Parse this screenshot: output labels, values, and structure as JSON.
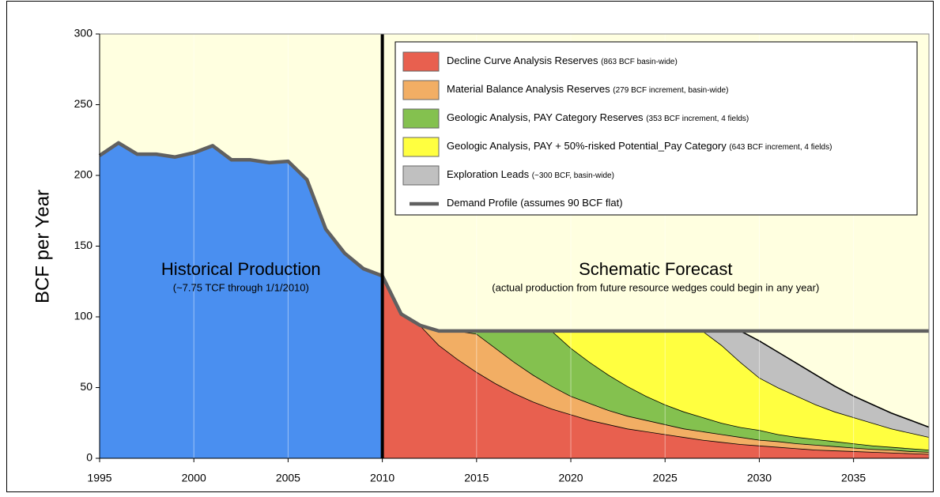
{
  "chart_data": {
    "type": "area",
    "ylabel": "BCF per Year",
    "xlim": [
      1995,
      2039
    ],
    "ylim": [
      0,
      300
    ],
    "xticks": [
      1995,
      2000,
      2005,
      2010,
      2015,
      2020,
      2025,
      2030,
      2035
    ],
    "yticks": [
      0,
      50,
      100,
      150,
      200,
      250,
      300
    ],
    "grid": "x",
    "background": "#ffffe0",
    "history": {
      "name": "Historical Production",
      "note": "(~7.75 TCF through 1/1/2010)",
      "color": "#4a8ff0",
      "outline": "#606060",
      "x": [
        1995,
        1996,
        1997,
        1998,
        1999,
        2000,
        2001,
        2002,
        2003,
        2004,
        2005,
        2006,
        2007,
        2008,
        2009,
        2010
      ],
      "values": [
        214,
        223,
        215,
        215,
        213,
        216,
        221,
        211,
        211,
        209,
        210,
        197,
        162,
        145,
        134,
        129
      ]
    },
    "forecast_label": "Schematic Forecast",
    "forecast_note": "(actual production from future resource wedges could begin in any year)",
    "series": [
      {
        "name": "Decline Curve Analysis Reserves",
        "note": "(863 BCF basin-wide)",
        "color": "#e8604f",
        "x": [
          2010,
          2011,
          2012,
          2013,
          2014,
          2015,
          2016,
          2017,
          2018,
          2019,
          2020,
          2021,
          2022,
          2023,
          2024,
          2025,
          2026,
          2027,
          2028,
          2029,
          2030,
          2031,
          2032,
          2033,
          2034,
          2035,
          2036,
          2037,
          2038,
          2039
        ],
        "values": [
          129,
          102,
          94,
          80,
          70,
          61,
          53,
          46,
          40,
          35,
          31,
          27,
          24,
          21,
          19,
          17,
          15,
          13,
          11.5,
          10,
          9,
          8,
          7,
          6,
          5.5,
          5,
          4.5,
          4,
          3.5,
          3
        ]
      },
      {
        "name": "Material Balance Analysis Reserves",
        "note": "(279 BCF increment, basin-wide)",
        "color": "#f2ae64",
        "x": [
          2010,
          2011,
          2012,
          2013,
          2014,
          2015,
          2016,
          2017,
          2018,
          2019,
          2020,
          2021,
          2022,
          2023,
          2024,
          2025,
          2026,
          2027,
          2028,
          2029,
          2030,
          2031,
          2032,
          2033,
          2034,
          2035,
          2036,
          2037,
          2038,
          2039
        ],
        "values": [
          0,
          0,
          0,
          10,
          20,
          27,
          25,
          22,
          19,
          16,
          13,
          12,
          10,
          9,
          8,
          7,
          6,
          6,
          5.5,
          5,
          4,
          4,
          3.5,
          3.5,
          3,
          2.5,
          2,
          2,
          1.5,
          1.5
        ]
      },
      {
        "name": "Geologic Analysis, PAY Category Reserves",
        "note": "(353 BCF increment, 4 fields)",
        "color": "#84c14f",
        "x": [
          2010,
          2011,
          2012,
          2013,
          2014,
          2015,
          2016,
          2017,
          2018,
          2019,
          2020,
          2021,
          2022,
          2023,
          2024,
          2025,
          2026,
          2027,
          2028,
          2029,
          2030,
          2031,
          2032,
          2033,
          2034,
          2035,
          2036,
          2037,
          2038,
          2039
        ],
        "values": [
          0,
          0,
          0,
          0,
          0,
          2,
          12,
          22,
          31,
          39,
          34,
          29,
          25,
          21,
          17,
          14,
          12,
          10,
          8,
          7,
          7,
          5,
          4.5,
          4,
          3.5,
          3,
          2.5,
          2,
          2,
          1.5
        ]
      },
      {
        "name": "Geologic Analysis, PAY + 50%-risked Potential_Pay Category",
        "note": "(643 BCF increment, 4 fields)",
        "color": "#ffff40",
        "x": [
          2010,
          2011,
          2012,
          2013,
          2014,
          2015,
          2016,
          2017,
          2018,
          2019,
          2020,
          2021,
          2022,
          2023,
          2024,
          2025,
          2026,
          2027,
          2028,
          2029,
          2030,
          2031,
          2032,
          2033,
          2034,
          2035,
          2036,
          2037,
          2038,
          2039
        ],
        "values": [
          0,
          0,
          0,
          0,
          0,
          0,
          0,
          0,
          0,
          0,
          12,
          22,
          31,
          39,
          46,
          52,
          57,
          61,
          55,
          46,
          37,
          33,
          29,
          24.5,
          21,
          18.5,
          16,
          13,
          11,
          9
        ]
      },
      {
        "name": "Exploration Leads",
        "note": "(~300 BCF, basin-wide)",
        "color": "#c0c0c0",
        "x": [
          2010,
          2011,
          2012,
          2013,
          2014,
          2015,
          2016,
          2017,
          2018,
          2019,
          2020,
          2021,
          2022,
          2023,
          2024,
          2025,
          2026,
          2027,
          2028,
          2029,
          2030,
          2031,
          2032,
          2033,
          2034,
          2035,
          2036,
          2037,
          2038,
          2039
        ],
        "values": [
          0,
          0,
          0,
          0,
          0,
          0,
          0,
          0,
          0,
          0,
          0,
          0,
          0,
          0,
          0,
          0,
          0,
          0,
          10,
          22,
          26,
          25,
          23,
          21,
          18,
          15,
          13,
          11,
          9,
          7
        ]
      },
      {
        "type": "line",
        "name": "Demand Profile (assumes 90 BCF flat)",
        "color": "#606060",
        "x": [
          2010,
          2011,
          2012,
          2013,
          2014,
          2015,
          2016,
          2017,
          2018,
          2019,
          2020,
          2021,
          2022,
          2023,
          2024,
          2025,
          2026,
          2027,
          2028,
          2029,
          2030,
          2031,
          2032,
          2033,
          2034,
          2035,
          2036,
          2037,
          2038,
          2039
        ],
        "values": [
          129,
          102,
          94,
          90,
          90,
          90,
          90,
          90,
          90,
          90,
          90,
          90,
          90,
          90,
          90,
          90,
          90,
          90,
          90,
          90,
          90,
          90,
          90,
          90,
          90,
          90,
          90,
          90,
          90,
          90
        ]
      }
    ]
  }
}
